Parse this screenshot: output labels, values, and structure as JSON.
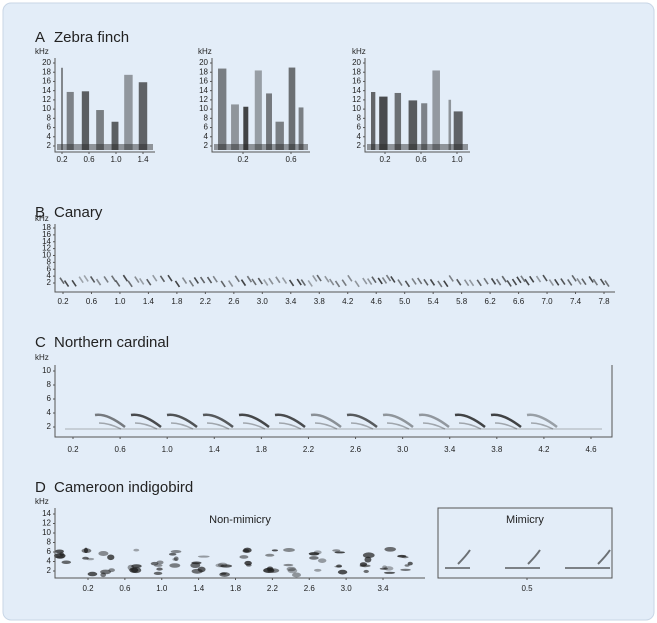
{
  "panels": [
    {
      "label": "A",
      "title": "Zebra finch",
      "plots": [
        {
          "y_label": "kHz",
          "yticks": [
            "2",
            "4",
            "6",
            "8",
            "10",
            "12",
            "14",
            "16",
            "18",
            "20"
          ],
          "xticks": [
            "0.2",
            "0.6",
            "1.0",
            "1.4"
          ]
        },
        {
          "y_label": "kHz",
          "yticks": [
            "2",
            "4",
            "6",
            "8",
            "10",
            "12",
            "14",
            "16",
            "18",
            "20"
          ],
          "xticks": [
            "0.2",
            "0.6"
          ]
        },
        {
          "y_label": "kHz",
          "yticks": [
            "2",
            "4",
            "6",
            "8",
            "10",
            "12",
            "14",
            "16",
            "18",
            "20"
          ],
          "xticks": [
            "0.2",
            "0.6",
            "1.0"
          ]
        }
      ]
    },
    {
      "label": "B",
      "title": "Canary",
      "plots": [
        {
          "y_label": "kHz",
          "yticks": [
            "2",
            "4",
            "6",
            "8",
            "10",
            "12",
            "14",
            "16",
            "18"
          ],
          "xticks": [
            "0.2",
            "0.6",
            "1.0",
            "1.4",
            "1.8",
            "2.2",
            "2.6",
            "3.0",
            "3.4",
            "3.8",
            "4.2",
            "4.6",
            "5.0",
            "5.4",
            "5.8",
            "6.2",
            "6.6",
            "7.0",
            "7.4",
            "7.8"
          ]
        }
      ]
    },
    {
      "label": "C",
      "title": "Northern cardinal",
      "plots": [
        {
          "y_label": "kHz",
          "yticks": [
            "2",
            "4",
            "6",
            "8",
            "10"
          ],
          "xticks": [
            "0.2",
            "0.6",
            "1.0",
            "1.4",
            "1.8",
            "2.2",
            "2.6",
            "3.0",
            "3.4",
            "3.8",
            "4.2",
            "4.6"
          ]
        }
      ]
    },
    {
      "label": "D",
      "title": "Cameroon indigobird",
      "plots": [
        {
          "y_label": "kHz",
          "yticks": [
            "2",
            "4",
            "6",
            "8",
            "10",
            "12",
            "14"
          ],
          "xticks": [
            "0.2",
            "0.6",
            "1.0",
            "1.4",
            "1.8",
            "2.2",
            "2.6",
            "3.0",
            "3.4"
          ],
          "annotation": "Non-mimicry"
        },
        {
          "xticks": [
            "0.5"
          ],
          "annotation": "Mimicry"
        }
      ]
    }
  ]
}
